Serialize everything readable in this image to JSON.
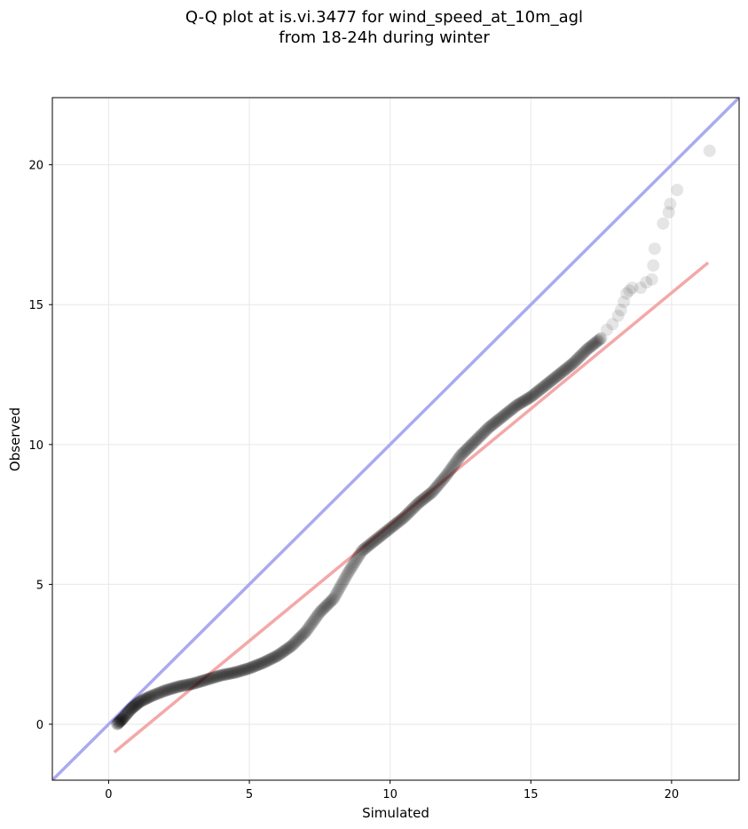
{
  "chart_data": {
    "type": "scatter",
    "title": "Q-Q plot at is.vi.3477 for wind_speed_at_10m_agl",
    "subtitle": "from 18-24h during winter",
    "xlabel": "Simulated",
    "ylabel": "Observed",
    "xlim": [
      -2.0,
      22.4
    ],
    "ylim": [
      -2.0,
      22.4
    ],
    "xticks": [
      0,
      5,
      10,
      15,
      20
    ],
    "yticks": [
      0,
      5,
      10,
      15,
      20
    ],
    "grid": true,
    "legend": "none",
    "colors": {
      "points": "#000000",
      "identity_line": "#aaaaf0",
      "fit_line": "#f4a8a8",
      "grid": "#ebebeb"
    },
    "identity_line": {
      "slope": 1,
      "intercept": 0
    },
    "fit_line": {
      "x": [
        0.2,
        21.3
      ],
      "y": [
        -1.0,
        16.5
      ]
    },
    "quantile_curve": {
      "x": [
        0.3,
        0.5,
        0.8,
        1.1,
        1.5,
        2.0,
        2.5,
        3.0,
        3.5,
        4.0,
        4.5,
        5.0,
        5.5,
        6.0,
        6.5,
        7.0,
        7.5,
        8.0,
        8.5,
        9.0,
        9.5,
        10.0,
        10.5,
        11.0,
        11.5,
        12.0,
        12.5,
        13.0,
        13.5,
        14.0,
        14.5,
        15.0,
        15.5,
        16.0,
        16.5,
        17.0,
        17.5
      ],
      "y": [
        0.0,
        0.2,
        0.55,
        0.8,
        1.0,
        1.2,
        1.35,
        1.45,
        1.6,
        1.75,
        1.85,
        2.0,
        2.2,
        2.45,
        2.8,
        3.3,
        4.0,
        4.5,
        5.4,
        6.2,
        6.6,
        7.0,
        7.4,
        7.9,
        8.3,
        8.9,
        9.6,
        10.1,
        10.6,
        11.0,
        11.4,
        11.7,
        12.1,
        12.5,
        12.9,
        13.4,
        13.8
      ]
    },
    "tail_points": {
      "x": [
        17.7,
        17.9,
        18.1,
        18.2,
        18.3,
        18.4,
        18.5,
        18.6,
        18.9,
        19.1,
        19.3,
        19.35,
        19.4,
        19.7,
        19.9,
        19.95,
        20.2,
        21.35
      ],
      "y": [
        14.1,
        14.3,
        14.6,
        14.8,
        15.1,
        15.4,
        15.5,
        15.6,
        15.6,
        15.8,
        15.9,
        16.4,
        17.0,
        17.9,
        18.3,
        18.6,
        19.1,
        20.5
      ]
    }
  }
}
